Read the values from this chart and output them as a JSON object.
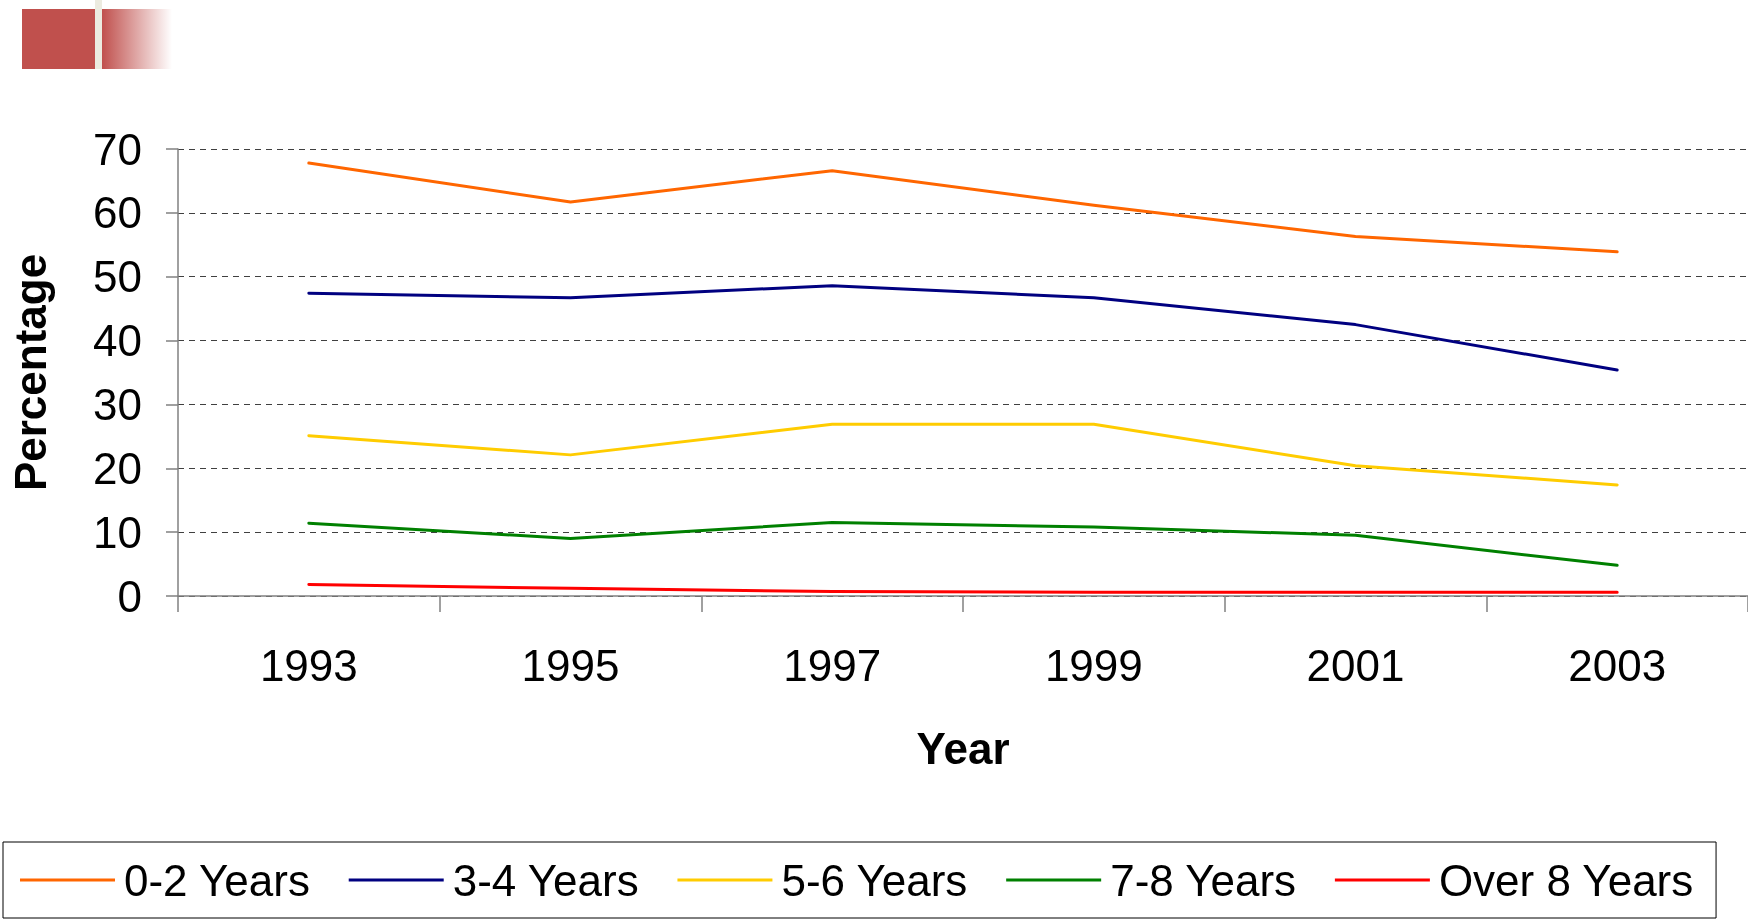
{
  "chart_data": {
    "type": "line",
    "xlabel": "Year",
    "ylabel": "Percentage",
    "categories": [
      "1993",
      "1995",
      "1997",
      "1999",
      "2001",
      "2003"
    ],
    "ylim": [
      0,
      70
    ],
    "yticks": [
      0,
      10,
      20,
      30,
      40,
      50,
      60,
      70
    ],
    "grid": "y",
    "legend": "bottom",
    "marker": "none",
    "line_style": "solid",
    "series": [
      {
        "name": "0-2 Years",
        "color": "#ff6600",
        "values": [
          67.8,
          61.7,
          66.6,
          61.2,
          56.3,
          53.9
        ]
      },
      {
        "name": "3-4 Years",
        "color": "#000080",
        "values": [
          47.4,
          46.7,
          48.6,
          46.7,
          42.5,
          35.4
        ]
      },
      {
        "name": "5-6 Years",
        "color": "#ffcc00",
        "values": [
          25.1,
          22.1,
          26.9,
          26.9,
          20.4,
          17.4
        ]
      },
      {
        "name": "7-8 Years",
        "color": "#008000",
        "values": [
          11.4,
          9.0,
          11.5,
          10.8,
          9.5,
          4.8
        ]
      },
      {
        "name": "Over 8 Years",
        "color": "#ff0000",
        "values": [
          1.8,
          1.2,
          0.7,
          0.6,
          0.6,
          0.6
        ]
      }
    ]
  }
}
